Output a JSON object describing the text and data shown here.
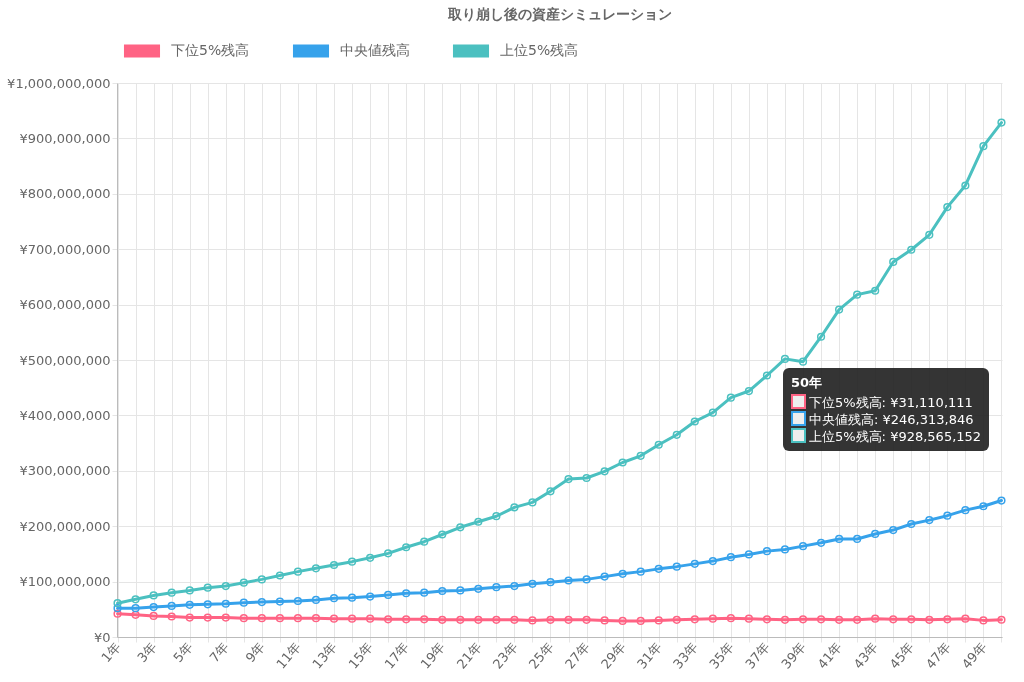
{
  "chart_data": {
    "type": "line",
    "title": "取り崩し後の資産シミュレーション",
    "categories": [
      "1年",
      null,
      "3年",
      null,
      "5年",
      null,
      "7年",
      null,
      "9年",
      null,
      "11年",
      null,
      "13年",
      null,
      "15年",
      null,
      "17年",
      null,
      "19年",
      null,
      "21年",
      null,
      "23年",
      null,
      "25年",
      null,
      "27年",
      null,
      "29年",
      null,
      "31年",
      null,
      "33年",
      null,
      "35年",
      null,
      "37年",
      null,
      "39年",
      null,
      "41年",
      null,
      "43年",
      null,
      "45年",
      null,
      "47年",
      null,
      "49年",
      null
    ],
    "series": [
      {
        "name": "下位5%残高",
        "color": "#ff6384",
        "values": [
          42000000,
          40000000,
          38000000,
          37000000,
          35000000,
          35000000,
          35000000,
          34000000,
          34000000,
          34000000,
          34000000,
          34000000,
          33000000,
          33000000,
          33000000,
          32000000,
          32000000,
          32000000,
          31000000,
          31000000,
          31000000,
          31000000,
          31000000,
          30000000,
          31000000,
          31000000,
          31000000,
          30000000,
          29000000,
          29000000,
          30000000,
          31000000,
          32000000,
          33000000,
          34000000,
          33000000,
          32000000,
          31000000,
          32000000,
          32000000,
          31000000,
          31000000,
          33000000,
          32000000,
          32000000,
          31000000,
          32000000,
          33000000,
          30000000,
          31110111
        ]
      },
      {
        "name": "中央値残高",
        "color": "#36a2eb",
        "values": [
          52000000,
          52000000,
          54000000,
          56000000,
          58000000,
          59000000,
          60000000,
          62000000,
          63000000,
          64000000,
          65000000,
          67000000,
          70000000,
          71000000,
          73000000,
          76000000,
          79000000,
          80000000,
          83000000,
          84000000,
          87000000,
          90000000,
          92000000,
          96000000,
          99000000,
          102000000,
          104000000,
          109000000,
          114000000,
          118000000,
          123000000,
          127000000,
          132000000,
          137000000,
          144000000,
          149000000,
          155000000,
          158000000,
          164000000,
          170000000,
          177000000,
          177000000,
          186000000,
          193000000,
          204000000,
          211000000,
          219000000,
          229000000,
          236000000,
          246313846
        ]
      },
      {
        "name": "上位5%残高",
        "color": "#4bc0c0",
        "values": [
          61000000,
          68000000,
          75000000,
          80000000,
          84000000,
          89000000,
          92000000,
          98000000,
          104000000,
          111000000,
          118000000,
          124000000,
          130000000,
          136000000,
          143000000,
          151000000,
          162000000,
          172000000,
          185000000,
          198000000,
          208000000,
          218000000,
          234000000,
          243000000,
          263000000,
          285000000,
          287000000,
          299000000,
          315000000,
          327000000,
          347000000,
          365000000,
          389000000,
          405000000,
          432000000,
          444000000,
          472000000,
          502000000,
          497000000,
          542000000,
          591000000,
          618000000,
          625000000,
          677000000,
          699000000,
          726000000,
          776000000,
          815000000,
          886000000,
          928565152
        ]
      }
    ],
    "ylim": [
      0,
      1000000000
    ],
    "yticks": [
      {
        "value": 0,
        "label": "¥0"
      },
      {
        "value": 100000000,
        "label": "¥100,000,000"
      },
      {
        "value": 200000000,
        "label": "¥200,000,000"
      },
      {
        "value": 300000000,
        "label": "¥300,000,000"
      },
      {
        "value": 400000000,
        "label": "¥400,000,000"
      },
      {
        "value": 500000000,
        "label": "¥500,000,000"
      },
      {
        "value": 600000000,
        "label": "¥600,000,000"
      },
      {
        "value": 700000000,
        "label": "¥700,000,000"
      },
      {
        "value": 800000000,
        "label": "¥800,000,000"
      },
      {
        "value": 900000000,
        "label": "¥900,000,000"
      },
      {
        "value": 1000000000,
        "label": "¥1,000,000,000"
      }
    ],
    "grid": true,
    "legend": "top",
    "marker": "circle",
    "line_style": "solid",
    "annotations": [
      "50年",
      "下位5%残高: ¥31,110,111",
      "中央値残高: ¥246,313,846",
      "上位5%残高: ¥928,565,152"
    ]
  }
}
